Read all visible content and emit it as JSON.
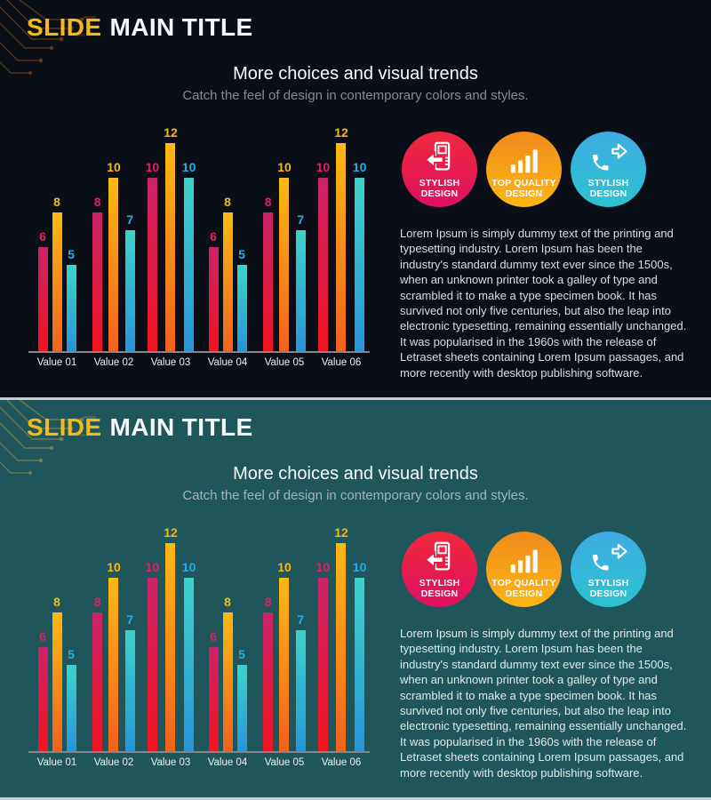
{
  "themes": {
    "dark": {
      "background": "#0a0f17"
    },
    "teal": {
      "background": "#1e565c"
    },
    "accent_yellow": "#f7b916",
    "separator": "#c9cdd0",
    "axis_color": "#84888c"
  },
  "slide": {
    "title_accent": "SLIDE",
    "title_rest": "MAIN TITLE",
    "heading": "More choices and visual trends",
    "tagline": "Catch the feel of design in contemporary colors and styles.",
    "badges": [
      {
        "icon": "device-arrow-icon",
        "line1": "STYLISH",
        "line2": "DESIGN",
        "gradient_top": "#f1293c",
        "gradient_bottom": "#dd1060"
      },
      {
        "icon": "bar-chart-icon",
        "line1": "TOP QUALITY",
        "line2": "DESIGN",
        "gradient_top": "#f18a1d",
        "gradient_bottom": "#fcb713"
      },
      {
        "icon": "phone-forward-icon",
        "line1": "STYLISH",
        "line2": "DESIGN",
        "gradient_top": "#3fabe2",
        "gradient_bottom": "#2bc3d0"
      }
    ],
    "body_text": "Lorem Ipsum is simply dummy text of the printing and typesetting industry. Lorem Ipsum has been the industry's standard dummy text ever since the 1500s, when an unknown printer took a galley of type and scrambled it to make a type specimen book. It has survived not only five centuries, but also the leap into electronic typesetting, remaining essentially unchanged. It was popularised in the 1960s with the release of Letraset sheets containing Lorem Ipsum passages, and more recently with desktop publishing software."
  },
  "chart_data": {
    "type": "bar",
    "categories": [
      "Value 01",
      "Value 02",
      "Value 03",
      "Value 04",
      "Value 05",
      "Value 06"
    ],
    "series": [
      {
        "name": "pink",
        "values": [
          6,
          8,
          10,
          6,
          8,
          10
        ],
        "color_top": "#cb2368",
        "color_bottom": "#f2131f",
        "label_color": "#ea1c5b"
      },
      {
        "name": "yellow",
        "values": [
          8,
          10,
          12,
          8,
          10,
          12
        ],
        "color_top": "#fcba12",
        "color_bottom": "#f2611d",
        "label_color": "#fcb614"
      },
      {
        "name": "cyan",
        "values": [
          5,
          7,
          10,
          5,
          7,
          10
        ],
        "color_top": "#3dd3c9",
        "color_bottom": "#2795d9",
        "label_color": "#29abe2"
      }
    ],
    "ylim": [
      0,
      12
    ],
    "grid": false,
    "legend": false,
    "value_labels": "above bars, colored per series",
    "title": "",
    "xlabel": "",
    "ylabel": ""
  }
}
